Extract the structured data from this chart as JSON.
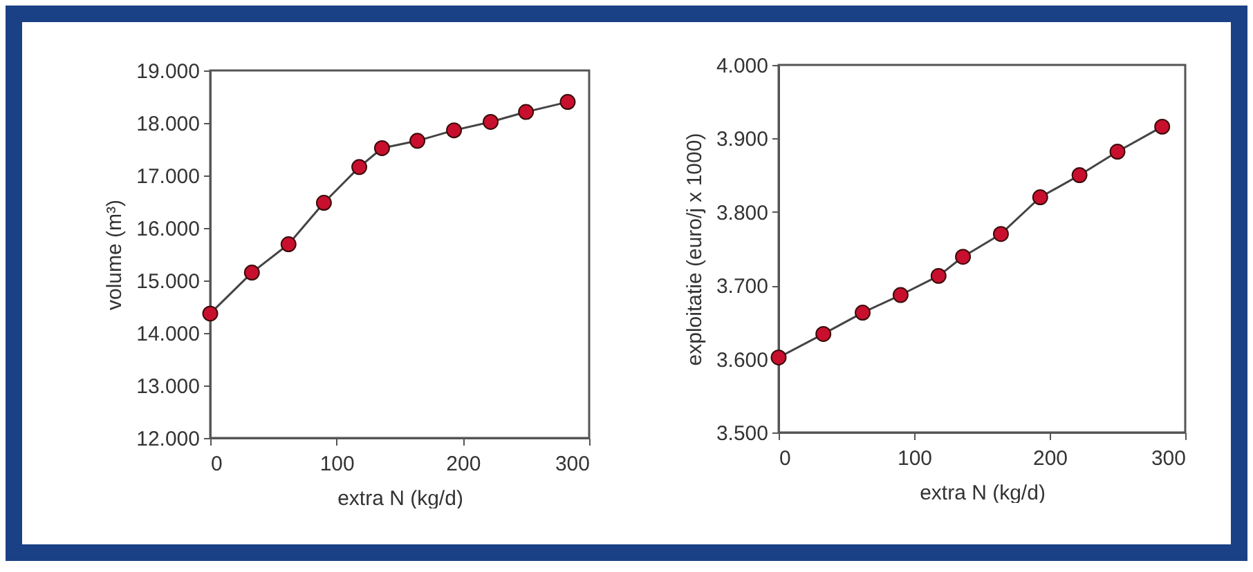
{
  "chart_data": [
    {
      "type": "line",
      "xlabel": "extra N (kg/d)",
      "ylabel": "volume (m³)",
      "x": [
        0,
        33,
        62,
        90,
        118,
        136,
        164,
        193,
        222,
        250,
        283
      ],
      "series": [
        {
          "color": "#c8102e",
          "values": [
            14370,
            15150,
            15690,
            16480,
            17160,
            17520,
            17660,
            17860,
            18020,
            18210,
            18400
          ]
        }
      ],
      "xlim": [
        0,
        300
      ],
      "xticks": [
        0,
        100,
        200,
        300
      ],
      "ylim": [
        12000,
        19000
      ],
      "yticks": [
        {
          "value": 12000,
          "label": "12.000"
        },
        {
          "value": 13000,
          "label": "13.000"
        },
        {
          "value": 14000,
          "label": "14.000"
        },
        {
          "value": 15000,
          "label": "15.000"
        },
        {
          "value": 16000,
          "label": "16.000"
        },
        {
          "value": 17000,
          "label": "17.000"
        },
        {
          "value": 18000,
          "label": "18.000"
        },
        {
          "value": 19000,
          "label": "19.000"
        }
      ],
      "marker": "circle",
      "line_style": "solid"
    },
    {
      "type": "line",
      "xlabel": "extra N (kg/d)",
      "ylabel": "exploitatie (euro/j x 1000)",
      "x": [
        0,
        33,
        62,
        90,
        118,
        136,
        164,
        193,
        222,
        250,
        283
      ],
      "series": [
        {
          "color": "#c8102e",
          "values": [
            3602,
            3634,
            3663,
            3687,
            3713,
            3739,
            3770,
            3820,
            3850,
            3882,
            3916
          ]
        }
      ],
      "xlim": [
        0,
        300
      ],
      "xticks": [
        0,
        100,
        200,
        300
      ],
      "ylim": [
        3500,
        4000
      ],
      "yticks": [
        {
          "value": 3500,
          "label": "3.500"
        },
        {
          "value": 3600,
          "label": "3.600"
        },
        {
          "value": 3700,
          "label": "3.700"
        },
        {
          "value": 3800,
          "label": "3.800"
        },
        {
          "value": 3900,
          "label": "3.900"
        },
        {
          "value": 4000,
          "label": "4.000"
        }
      ],
      "marker": "circle",
      "line_style": "solid"
    }
  ]
}
